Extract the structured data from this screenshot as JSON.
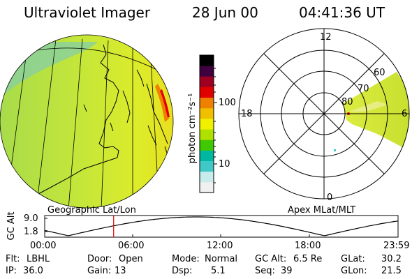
{
  "header": {
    "title": "Ultraviolet Imager",
    "date": "28 Jun 00",
    "time": "04:41:36  UT"
  },
  "globe_view": {
    "caption": "Geographic Lat/Lon"
  },
  "colorbar": {
    "unit_label": "photon cm⁻²s⁻¹",
    "tick_labels": [
      "100",
      "10"
    ],
    "colors": [
      "#f0f0f0",
      "#c8ecec",
      "#40c8c8",
      "#00b8a0",
      "#40c800",
      "#b0e000",
      "#f0f000",
      "#f0c000",
      "#f08000",
      "#e00000",
      "#a00020",
      "#400040",
      "#000000"
    ]
  },
  "polar_view": {
    "caption": "Apex  MLat/MLT",
    "mlt_labels": {
      "top": "12",
      "left": "18",
      "right": "6",
      "bottom": "0"
    },
    "lat_labels": [
      "60",
      "70",
      "80"
    ]
  },
  "altitude_panel": {
    "ylabel": "GC Alt",
    "y_ticks": [
      "9.0",
      "1.8"
    ],
    "x_ticks": [
      "00:00",
      "06:00",
      "12:00",
      "18:00",
      "23:59"
    ],
    "marker_time": "04:41"
  },
  "footer": {
    "row1": [
      {
        "key": "Flt:",
        "value": "LBHL"
      },
      {
        "key": "Door:",
        "value": "Open"
      },
      {
        "key": "Mode:",
        "value": "Normal"
      },
      {
        "key": "GC Alt:",
        "value": "6.5 Re"
      },
      {
        "key": "GLat:",
        "value": "30.2"
      }
    ],
    "row2": [
      {
        "key": "IP:",
        "value": "36.0"
      },
      {
        "key": "Gain:",
        "value": "13"
      },
      {
        "key": "Dsp:",
        "value": "5.1"
      },
      {
        "key": "Seq:",
        "value": "39"
      },
      {
        "key": "GLon:",
        "value": "21.5"
      }
    ]
  }
}
